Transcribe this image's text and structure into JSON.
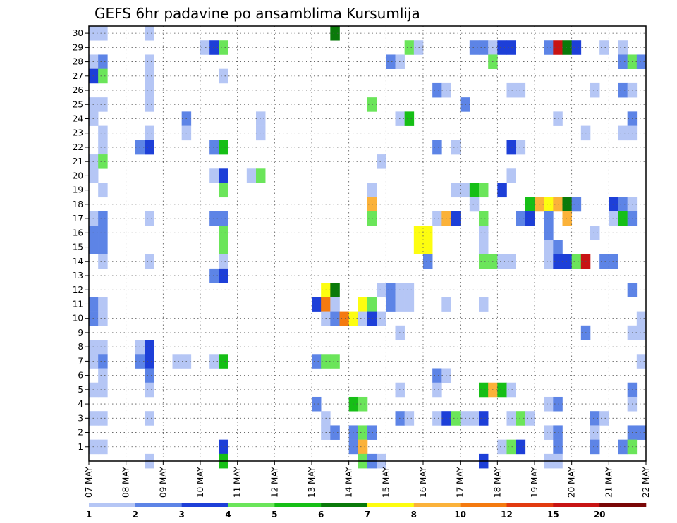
{
  "chart_data": {
    "type": "heatmap",
    "title": "GEFS 6hr padavine po ansamblima Kursumlija",
    "x_ticks": [
      "07 MAY",
      "08 MAY",
      "09 MAY",
      "10 MAY",
      "11 MAY",
      "12 MAY",
      "13 MAY",
      "14 MAY",
      "15 MAY",
      "16 MAY",
      "17 MAY",
      "18 MAY",
      "19 MAY",
      "20 MAY",
      "21 MAY",
      "22 MAY"
    ],
    "y_ticks": [
      1,
      2,
      3,
      4,
      5,
      6,
      7,
      8,
      9,
      10,
      11,
      12,
      13,
      14,
      15,
      16,
      17,
      18,
      19,
      20,
      21,
      22,
      23,
      24,
      25,
      26,
      27,
      28,
      29,
      30
    ],
    "x_range_steps": [
      0,
      60
    ],
    "y_range_members": [
      0,
      30
    ],
    "grid": true,
    "colorbar": {
      "levels": [
        "1",
        "2",
        "3",
        "4",
        "5",
        "6",
        "7",
        "8",
        "10",
        "12",
        "15",
        "20"
      ],
      "colors": [
        "#b5c6f5",
        "#5d84e6",
        "#1d3fd8",
        "#6be55a",
        "#16bf16",
        "#0a7a0a",
        "#fdfd10",
        "#fbb23a",
        "#f47a10",
        "#e23a10",
        "#c81414",
        "#7a0606"
      ]
    },
    "cells": [
      [
        1,
        30,
        1
      ],
      [
        2,
        30,
        1
      ],
      [
        7,
        30,
        1
      ],
      [
        27,
        30,
        6
      ],
      [
        13,
        29,
        1
      ],
      [
        14,
        29,
        3
      ],
      [
        15,
        29,
        4
      ],
      [
        35,
        29,
        4
      ],
      [
        36,
        29,
        1
      ],
      [
        42,
        29,
        2
      ],
      [
        43,
        29,
        2
      ],
      [
        44,
        29,
        1
      ],
      [
        45,
        29,
        3
      ],
      [
        46,
        29,
        3
      ],
      [
        50,
        29,
        2
      ],
      [
        51,
        29,
        11
      ],
      [
        52,
        29,
        6
      ],
      [
        53,
        29,
        3
      ],
      [
        56,
        29,
        1
      ],
      [
        58,
        29,
        1
      ],
      [
        1,
        28,
        1
      ],
      [
        2,
        28,
        2
      ],
      [
        7,
        28,
        1
      ],
      [
        33,
        28,
        2
      ],
      [
        34,
        28,
        1
      ],
      [
        44,
        28,
        4
      ],
      [
        58,
        28,
        2
      ],
      [
        59,
        28,
        4
      ],
      [
        60,
        28,
        2
      ],
      [
        1,
        27,
        3
      ],
      [
        2,
        27,
        4
      ],
      [
        7,
        27,
        1
      ],
      [
        15,
        27,
        1
      ],
      [
        7,
        26,
        1
      ],
      [
        38,
        26,
        2
      ],
      [
        39,
        26,
        1
      ],
      [
        46,
        26,
        1
      ],
      [
        47,
        26,
        1
      ],
      [
        55,
        26,
        1
      ],
      [
        58,
        26,
        2
      ],
      [
        59,
        26,
        1
      ],
      [
        1,
        25,
        1
      ],
      [
        2,
        25,
        1
      ],
      [
        7,
        25,
        1
      ],
      [
        31,
        25,
        4
      ],
      [
        41,
        25,
        2
      ],
      [
        1,
        24,
        1
      ],
      [
        11,
        24,
        2
      ],
      [
        19,
        24,
        1
      ],
      [
        34,
        24,
        1
      ],
      [
        35,
        24,
        5
      ],
      [
        51,
        24,
        1
      ],
      [
        59,
        24,
        2
      ],
      [
        2,
        23,
        1
      ],
      [
        7,
        23,
        1
      ],
      [
        11,
        23,
        1
      ],
      [
        19,
        23,
        1
      ],
      [
        54,
        23,
        1
      ],
      [
        58,
        23,
        1
      ],
      [
        59,
        23,
        1
      ],
      [
        2,
        22,
        1
      ],
      [
        6,
        22,
        2
      ],
      [
        7,
        22,
        3
      ],
      [
        14,
        22,
        2
      ],
      [
        15,
        22,
        5
      ],
      [
        38,
        22,
        2
      ],
      [
        40,
        22,
        1
      ],
      [
        46,
        22,
        3
      ],
      [
        47,
        22,
        1
      ],
      [
        1,
        21,
        1
      ],
      [
        2,
        21,
        4
      ],
      [
        32,
        21,
        1
      ],
      [
        1,
        20,
        1
      ],
      [
        14,
        20,
        1
      ],
      [
        15,
        20,
        3
      ],
      [
        18,
        20,
        1
      ],
      [
        19,
        20,
        4
      ],
      [
        46,
        20,
        1
      ],
      [
        2,
        19,
        1
      ],
      [
        15,
        19,
        4
      ],
      [
        31,
        19,
        1
      ],
      [
        40,
        19,
        1
      ],
      [
        41,
        19,
        1
      ],
      [
        42,
        19,
        5
      ],
      [
        43,
        19,
        4
      ],
      [
        45,
        19,
        3
      ],
      [
        31,
        18,
        8
      ],
      [
        42,
        18,
        1
      ],
      [
        48,
        18,
        5
      ],
      [
        49,
        18,
        8
      ],
      [
        50,
        18,
        7
      ],
      [
        51,
        18,
        8
      ],
      [
        52,
        18,
        6
      ],
      [
        53,
        18,
        2
      ],
      [
        57,
        18,
        3
      ],
      [
        58,
        18,
        2
      ],
      [
        59,
        18,
        1
      ],
      [
        1,
        17,
        1
      ],
      [
        2,
        17,
        2
      ],
      [
        7,
        17,
        1
      ],
      [
        14,
        17,
        2
      ],
      [
        15,
        17,
        2
      ],
      [
        31,
        17,
        4
      ],
      [
        38,
        17,
        1
      ],
      [
        39,
        17,
        8
      ],
      [
        40,
        17,
        3
      ],
      [
        43,
        17,
        4
      ],
      [
        47,
        17,
        2
      ],
      [
        48,
        17,
        3
      ],
      [
        50,
        17,
        2
      ],
      [
        52,
        17,
        8
      ],
      [
        57,
        17,
        1
      ],
      [
        58,
        17,
        5
      ],
      [
        59,
        17,
        2
      ],
      [
        1,
        16,
        2
      ],
      [
        2,
        16,
        2
      ],
      [
        15,
        16,
        4
      ],
      [
        36,
        16,
        7
      ],
      [
        37,
        16,
        7
      ],
      [
        43,
        16,
        1
      ],
      [
        50,
        16,
        2
      ],
      [
        55,
        16,
        1
      ],
      [
        1,
        15,
        2
      ],
      [
        2,
        15,
        2
      ],
      [
        15,
        15,
        4
      ],
      [
        36,
        15,
        7
      ],
      [
        37,
        15,
        7
      ],
      [
        43,
        15,
        1
      ],
      [
        50,
        15,
        1
      ],
      [
        51,
        15,
        2
      ],
      [
        2,
        14,
        1
      ],
      [
        7,
        14,
        1
      ],
      [
        15,
        14,
        1
      ],
      [
        37,
        14,
        2
      ],
      [
        43,
        14,
        4
      ],
      [
        44,
        14,
        4
      ],
      [
        45,
        14,
        1
      ],
      [
        46,
        14,
        1
      ],
      [
        50,
        14,
        1
      ],
      [
        51,
        14,
        3
      ],
      [
        52,
        14,
        3
      ],
      [
        53,
        14,
        4
      ],
      [
        54,
        14,
        11
      ],
      [
        56,
        14,
        2
      ],
      [
        57,
        14,
        2
      ],
      [
        14,
        13,
        2
      ],
      [
        15,
        13,
        3
      ],
      [
        26,
        12,
        7
      ],
      [
        27,
        12,
        6
      ],
      [
        32,
        12,
        1
      ],
      [
        33,
        12,
        2
      ],
      [
        34,
        12,
        1
      ],
      [
        35,
        12,
        1
      ],
      [
        59,
        12,
        2
      ],
      [
        1,
        11,
        2
      ],
      [
        2,
        11,
        1
      ],
      [
        25,
        11,
        3
      ],
      [
        26,
        11,
        9
      ],
      [
        27,
        11,
        1
      ],
      [
        30,
        11,
        7
      ],
      [
        31,
        11,
        4
      ],
      [
        33,
        11,
        2
      ],
      [
        34,
        11,
        1
      ],
      [
        35,
        11,
        1
      ],
      [
        39,
        11,
        1
      ],
      [
        43,
        11,
        1
      ],
      [
        1,
        10,
        2
      ],
      [
        2,
        10,
        1
      ],
      [
        26,
        10,
        1
      ],
      [
        27,
        10,
        2
      ],
      [
        28,
        10,
        9
      ],
      [
        29,
        10,
        7
      ],
      [
        30,
        10,
        1
      ],
      [
        31,
        10,
        3
      ],
      [
        32,
        10,
        1
      ],
      [
        60,
        10,
        1
      ],
      [
        34,
        9,
        1
      ],
      [
        54,
        9,
        2
      ],
      [
        59,
        9,
        1
      ],
      [
        60,
        9,
        1
      ],
      [
        1,
        8,
        1
      ],
      [
        2,
        8,
        1
      ],
      [
        6,
        8,
        1
      ],
      [
        7,
        8,
        3
      ],
      [
        1,
        7,
        1
      ],
      [
        2,
        7,
        2
      ],
      [
        6,
        7,
        2
      ],
      [
        7,
        7,
        3
      ],
      [
        10,
        7,
        1
      ],
      [
        11,
        7,
        1
      ],
      [
        14,
        7,
        1
      ],
      [
        15,
        7,
        5
      ],
      [
        25,
        7,
        2
      ],
      [
        26,
        7,
        4
      ],
      [
        27,
        7,
        4
      ],
      [
        60,
        7,
        1
      ],
      [
        2,
        6,
        1
      ],
      [
        7,
        6,
        2
      ],
      [
        38,
        6,
        2
      ],
      [
        39,
        6,
        1
      ],
      [
        1,
        5,
        1
      ],
      [
        2,
        5,
        1
      ],
      [
        7,
        5,
        1
      ],
      [
        34,
        5,
        1
      ],
      [
        38,
        5,
        1
      ],
      [
        43,
        5,
        5
      ],
      [
        44,
        5,
        8
      ],
      [
        45,
        5,
        5
      ],
      [
        46,
        5,
        1
      ],
      [
        59,
        5,
        2
      ],
      [
        25,
        4,
        2
      ],
      [
        29,
        4,
        5
      ],
      [
        30,
        4,
        4
      ],
      [
        50,
        4,
        1
      ],
      [
        51,
        4,
        2
      ],
      [
        59,
        4,
        1
      ],
      [
        1,
        3,
        1
      ],
      [
        2,
        3,
        1
      ],
      [
        7,
        3,
        1
      ],
      [
        26,
        3,
        1
      ],
      [
        34,
        3,
        2
      ],
      [
        35,
        3,
        1
      ],
      [
        38,
        3,
        1
      ],
      [
        39,
        3,
        3
      ],
      [
        40,
        3,
        4
      ],
      [
        41,
        3,
        1
      ],
      [
        42,
        3,
        1
      ],
      [
        43,
        3,
        3
      ],
      [
        46,
        3,
        1
      ],
      [
        47,
        3,
        4
      ],
      [
        48,
        3,
        1
      ],
      [
        55,
        3,
        2
      ],
      [
        56,
        3,
        1
      ],
      [
        26,
        2,
        1
      ],
      [
        27,
        2,
        2
      ],
      [
        29,
        2,
        2
      ],
      [
        30,
        2,
        4
      ],
      [
        31,
        2,
        2
      ],
      [
        50,
        2,
        1
      ],
      [
        51,
        2,
        2
      ],
      [
        55,
        2,
        1
      ],
      [
        59,
        2,
        2
      ],
      [
        60,
        2,
        2
      ],
      [
        1,
        1,
        1
      ],
      [
        2,
        1,
        1
      ],
      [
        15,
        1,
        3
      ],
      [
        29,
        1,
        2
      ],
      [
        30,
        1,
        8
      ],
      [
        45,
        1,
        1
      ],
      [
        46,
        1,
        4
      ],
      [
        47,
        1,
        3
      ],
      [
        51,
        1,
        2
      ],
      [
        55,
        1,
        2
      ],
      [
        58,
        1,
        2
      ],
      [
        59,
        1,
        4
      ],
      [
        7,
        0,
        1
      ],
      [
        15,
        0,
        5
      ],
      [
        30,
        0,
        4
      ],
      [
        31,
        0,
        2
      ],
      [
        32,
        0,
        1
      ],
      [
        43,
        0,
        3
      ],
      [
        50,
        0,
        1
      ],
      [
        51,
        0,
        1
      ]
    ]
  }
}
